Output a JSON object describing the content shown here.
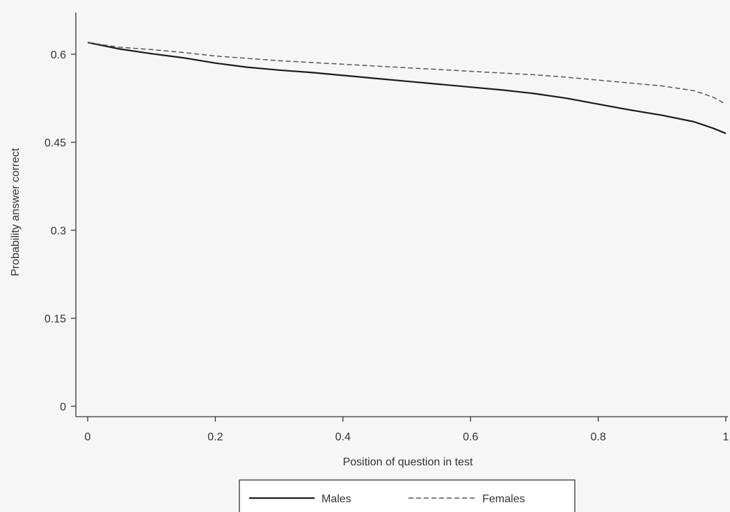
{
  "chart_data": {
    "type": "line",
    "title": "",
    "xlabel": "Position of question in test",
    "ylabel": "Probability answer correct",
    "xlim": [
      0,
      1
    ],
    "ylim": [
      0,
      0.64
    ],
    "x_ticks": [
      0,
      0.2,
      0.4,
      0.6,
      0.8,
      1
    ],
    "x_tick_labels": [
      "0",
      "0.2",
      "0.4",
      "0.6",
      "0.8",
      "1"
    ],
    "y_ticks": [
      0,
      0.15,
      0.3,
      0.45,
      0.6
    ],
    "y_tick_labels": [
      "0",
      "0.15",
      "0.3",
      "0.45",
      "0.6"
    ],
    "grid": false,
    "legend_position": "bottom",
    "x": [
      0,
      0.05,
      0.1,
      0.15,
      0.2,
      0.25,
      0.3,
      0.35,
      0.4,
      0.45,
      0.5,
      0.55,
      0.6,
      0.65,
      0.7,
      0.75,
      0.8,
      0.85,
      0.9,
      0.95,
      0.98,
      1.0
    ],
    "series": [
      {
        "name": "Males",
        "style": "solid",
        "color": "#1a1a1a",
        "values": [
          0.62,
          0.609,
          0.601,
          0.594,
          0.585,
          0.578,
          0.573,
          0.569,
          0.564,
          0.559,
          0.554,
          0.549,
          0.544,
          0.539,
          0.533,
          0.525,
          0.515,
          0.505,
          0.496,
          0.485,
          0.474,
          0.465
        ]
      },
      {
        "name": "Females",
        "style": "dashed",
        "color": "#555555",
        "values": [
          0.62,
          0.612,
          0.608,
          0.603,
          0.597,
          0.593,
          0.589,
          0.586,
          0.583,
          0.58,
          0.577,
          0.574,
          0.571,
          0.568,
          0.565,
          0.561,
          0.556,
          0.551,
          0.546,
          0.538,
          0.527,
          0.515
        ]
      }
    ]
  }
}
